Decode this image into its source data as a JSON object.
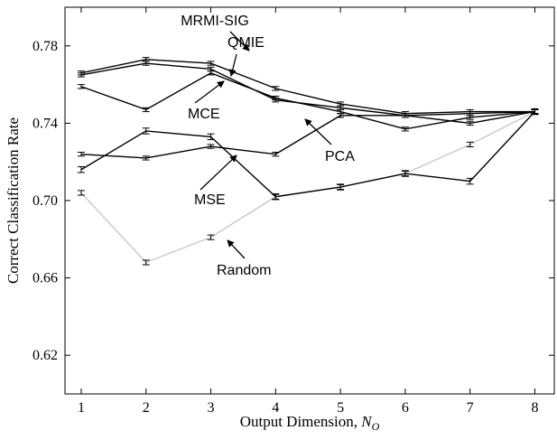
{
  "chart_data": {
    "type": "line",
    "title": "",
    "xlabel": "Output Dimension, ",
    "xlabel_sym": "N",
    "xlabel_sub": "O",
    "ylabel": "Correct Classification Rate",
    "xlim": [
      0.75,
      8.3
    ],
    "ylim": [
      0.6,
      0.8
    ],
    "xticks": [
      1,
      2,
      3,
      4,
      5,
      6,
      7,
      8
    ],
    "yticks": [
      0.62,
      0.66,
      0.7,
      0.74,
      0.78
    ],
    "ytick_labels": [
      "0.62",
      "0.66",
      "0.70",
      "0.74",
      "0.78"
    ],
    "grid": false,
    "x": [
      1,
      2,
      3,
      4,
      5,
      6,
      7,
      8
    ],
    "series": [
      {
        "name": "MRMI-SIG",
        "color": "#000000",
        "values": [
          0.766,
          0.773,
          0.771,
          0.758,
          0.75,
          0.745,
          0.746,
          0.746
        ],
        "err": 0.001
      },
      {
        "name": "QMIE",
        "color": "#000000",
        "values": [
          0.765,
          0.771,
          0.768,
          0.752,
          0.748,
          0.744,
          0.745,
          0.746
        ],
        "err": 0.001
      },
      {
        "name": "MCE",
        "color": "#000000",
        "values": [
          0.759,
          0.747,
          0.766,
          0.753,
          0.746,
          0.737,
          0.743,
          0.746
        ],
        "err": 0.001
      },
      {
        "name": "PCA",
        "color": "#000000",
        "values": [
          0.724,
          0.722,
          0.728,
          0.724,
          0.744,
          0.744,
          0.74,
          0.746
        ],
        "err": 0.001
      },
      {
        "name": "MSE",
        "color": "#000000",
        "values": [
          0.716,
          0.736,
          0.733,
          0.702,
          0.707,
          0.714,
          0.71,
          0.746
        ],
        "err": 0.0015
      },
      {
        "name": "Random",
        "color": "#c8c8c8",
        "values": [
          0.704,
          0.668,
          0.681,
          0.702,
          0.707,
          0.714,
          0.729,
          0.746
        ],
        "err": 0.0012
      }
    ],
    "annotations": [
      {
        "text": "MRMI-SIG",
        "series": "MRMI-SIG"
      },
      {
        "text": "QMIE",
        "series": "QMIE"
      },
      {
        "text": "MCE",
        "series": "MCE"
      },
      {
        "text": "PCA",
        "series": "PCA"
      },
      {
        "text": "MSE",
        "series": "MSE"
      },
      {
        "text": "Random",
        "series": "Random"
      }
    ]
  }
}
